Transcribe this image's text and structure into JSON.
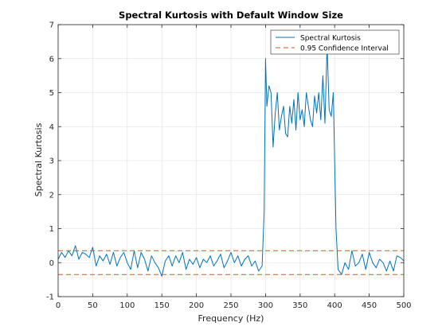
{
  "chart_data": {
    "type": "line",
    "title": "Spectral Kurtosis with Default Window Size",
    "xlabel": "Frequency (Hz)",
    "ylabel": "Spectral Kurtosis",
    "xlim": [
      0,
      500
    ],
    "ylim": [
      -1,
      7
    ],
    "xticks": [
      0,
      50,
      100,
      150,
      200,
      250,
      300,
      350,
      400,
      450,
      500
    ],
    "yticks": [
      -1,
      0,
      1,
      2,
      3,
      4,
      5,
      6,
      7
    ],
    "grid": true,
    "legend_position": "top-right",
    "series": [
      {
        "name": "Spectral Kurtosis",
        "color": "#0072BD",
        "style": "solid",
        "x": [
          0,
          5,
          10,
          15,
          20,
          25,
          30,
          35,
          40,
          45,
          50,
          55,
          60,
          65,
          70,
          75,
          80,
          85,
          90,
          95,
          100,
          105,
          110,
          115,
          120,
          125,
          130,
          135,
          140,
          145,
          150,
          155,
          160,
          165,
          170,
          175,
          180,
          185,
          190,
          195,
          200,
          205,
          210,
          215,
          220,
          225,
          230,
          235,
          240,
          245,
          250,
          255,
          260,
          265,
          270,
          275,
          280,
          285,
          290,
          295,
          298,
          300,
          302,
          305,
          308,
          311,
          314,
          317,
          320,
          323,
          326,
          329,
          332,
          335,
          338,
          341,
          344,
          347,
          350,
          353,
          356,
          359,
          362,
          365,
          368,
          371,
          374,
          377,
          380,
          383,
          386,
          389,
          392,
          395,
          398,
          400,
          402,
          405,
          410,
          415,
          420,
          425,
          430,
          435,
          440,
          445,
          450,
          455,
          460,
          465,
          470,
          475,
          480,
          485,
          490,
          495,
          500
        ],
        "y": [
          0.1,
          0.3,
          0.15,
          0.35,
          0.2,
          0.5,
          0.1,
          0.3,
          0.25,
          0.15,
          0.45,
          -0.1,
          0.2,
          0.05,
          0.25,
          -0.05,
          0.3,
          -0.1,
          0.15,
          0.3,
          0.0,
          -0.2,
          0.35,
          -0.15,
          0.3,
          0.1,
          -0.25,
          0.2,
          0.0,
          -0.15,
          -0.4,
          0.05,
          0.2,
          -0.1,
          0.2,
          0.0,
          0.3,
          -0.2,
          0.1,
          -0.05,
          0.15,
          -0.15,
          0.1,
          0.0,
          0.2,
          -0.1,
          0.05,
          0.25,
          -0.15,
          0.05,
          0.3,
          0.0,
          0.2,
          -0.1,
          0.1,
          0.2,
          -0.1,
          0.05,
          -0.25,
          -0.1,
          1.5,
          6.0,
          4.6,
          5.2,
          5.0,
          3.4,
          4.4,
          5.0,
          3.9,
          4.3,
          4.6,
          3.8,
          3.7,
          4.6,
          4.1,
          4.8,
          3.9,
          5.0,
          4.2,
          4.5,
          4.0,
          5.0,
          4.6,
          4.2,
          4.0,
          4.9,
          4.4,
          5.0,
          4.2,
          5.5,
          4.1,
          6.4,
          4.5,
          4.3,
          5.0,
          3.0,
          1.0,
          -0.2,
          -0.35,
          0.0,
          -0.2,
          0.35,
          -0.1,
          0.0,
          0.25,
          -0.2,
          0.3,
          0.0,
          -0.15,
          0.1,
          0.0,
          -0.25,
          0.05,
          -0.25,
          0.2,
          0.15,
          0.05
        ]
      },
      {
        "name": "0.95 Confidence Interval",
        "color": "#D95319",
        "style": "dashed",
        "y_const": [
          0.35,
          -0.35
        ]
      }
    ]
  }
}
